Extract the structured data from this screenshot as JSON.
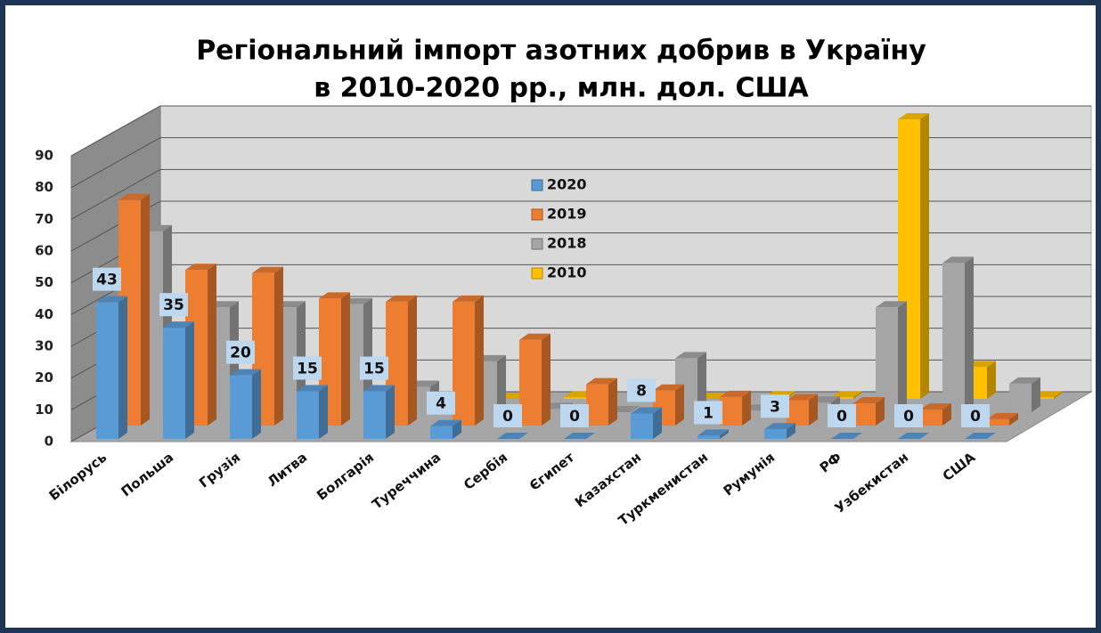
{
  "chart_data": {
    "type": "bar3d",
    "title": [
      "Регіональний імпорт азотних добрив в Україну",
      "в 2010-2020 рр., млн. дол. США"
    ],
    "categories": [
      "Білорусь",
      "Польша",
      "Грузія",
      "Литва",
      "Болгарія",
      "Туреччина",
      "Сербія",
      "Єгипет",
      "Казахстан",
      "Туркменистан",
      "Румунія",
      "РФ",
      "Узбекистан",
      "США"
    ],
    "series": [
      {
        "name": "2020",
        "color": "#5b9bd5",
        "values": [
          43,
          35,
          20,
          15,
          15,
          4,
          0,
          0,
          8,
          1,
          3,
          0,
          0,
          0
        ]
      },
      {
        "name": "2019",
        "color": "#ed7d31",
        "values": [
          71,
          49,
          48,
          40,
          39,
          39,
          27,
          13,
          11,
          9,
          8,
          7,
          5,
          2
        ]
      },
      {
        "name": "2018",
        "color": "#a5a5a5",
        "values": [
          57,
          33,
          33,
          34,
          8,
          16,
          1,
          0,
          17,
          0.5,
          3,
          33,
          47,
          9
        ]
      },
      {
        "name": "2010",
        "color": "#ffc000",
        "values": [
          0,
          0,
          0,
          0,
          0,
          0,
          0.5,
          0.5,
          0,
          0.5,
          0.5,
          88,
          10,
          0.5
        ]
      }
    ],
    "ylim": [
      0,
      90
    ],
    "yticks": [
      0,
      10,
      20,
      30,
      40,
      50,
      60,
      70,
      80,
      90
    ],
    "grid": true,
    "data_labels_series": 0
  }
}
